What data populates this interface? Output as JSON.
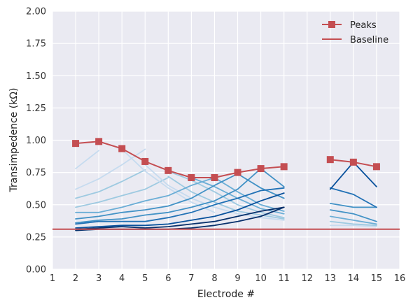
{
  "chart_data": {
    "type": "line",
    "xlabel": "Electrode #",
    "ylabel": "Transimpedence (kΩ)",
    "xlim": [
      1,
      16
    ],
    "ylim": [
      0,
      2
    ],
    "x_ticks": [
      "1",
      "2",
      "3",
      "4",
      "5",
      "6",
      "7",
      "8",
      "9",
      "10",
      "11",
      "12",
      "13",
      "14",
      "15",
      "16"
    ],
    "y_ticks": [
      "0.00",
      "0.25",
      "0.50",
      "0.75",
      "1.00",
      "1.25",
      "1.50",
      "1.75",
      "2.00"
    ],
    "grid": true,
    "legend_position": "top-right",
    "colors": {
      "peaks": "#c44e52",
      "baseline": "#c44e52",
      "background": "#eaeaf2",
      "grid": "#ffffff",
      "blue_palette": [
        "#c6dbef",
        "#9ecae1",
        "#6baed6",
        "#4292c6",
        "#2171b5",
        "#08519c",
        "#08306b"
      ]
    },
    "peaks": {
      "name": "Peaks",
      "x": [
        2,
        3,
        4,
        5,
        6,
        7,
        8,
        9,
        10,
        11,
        13,
        14,
        15
      ],
      "values": [
        0.975,
        0.99,
        0.935,
        0.835,
        0.765,
        0.71,
        0.71,
        0.75,
        0.78,
        0.795,
        0.85,
        0.83,
        0.795
      ]
    },
    "baseline": {
      "name": "Baseline",
      "value": 0.31
    },
    "curves": [
      {
        "x": [
          2,
          3
        ],
        "values": [
          0.78,
          0.92
        ],
        "shade": 0
      },
      {
        "x": [
          2,
          3,
          4,
          5
        ],
        "values": [
          0.62,
          0.7,
          0.81,
          0.93
        ],
        "shade": 0
      },
      {
        "x": [
          2,
          3,
          4,
          5
        ],
        "values": [
          0.55,
          0.6,
          0.68,
          0.77
        ],
        "shade": 1
      },
      {
        "x": [
          2,
          3,
          4,
          5,
          6
        ],
        "values": [
          0.48,
          0.52,
          0.57,
          0.62,
          0.71
        ],
        "shade": 1
      },
      {
        "x": [
          4,
          5,
          6,
          7,
          8
        ],
        "values": [
          0.93,
          0.76,
          0.63,
          0.52,
          0.44
        ],
        "shade": 0
      },
      {
        "x": [
          5,
          6,
          7,
          8,
          9,
          10,
          11
        ],
        "values": [
          0.81,
          0.65,
          0.55,
          0.48,
          0.43,
          0.4,
          0.38
        ],
        "shade": 0
      },
      {
        "x": [
          6,
          7,
          8,
          9,
          10,
          11
        ],
        "values": [
          0.72,
          0.6,
          0.52,
          0.45,
          0.42,
          0.39
        ],
        "shade": 1
      },
      {
        "x": [
          6,
          7,
          8,
          9,
          10,
          11
        ],
        "values": [
          0.76,
          0.69,
          0.6,
          0.5,
          0.44,
          0.4
        ],
        "shade": 1
      },
      {
        "x": [
          7,
          8,
          9,
          10,
          11
        ],
        "values": [
          0.71,
          0.64,
          0.55,
          0.47,
          0.43
        ],
        "shade": 2
      },
      {
        "x": [
          2,
          3,
          4,
          5,
          6,
          7,
          8,
          9,
          10,
          11
        ],
        "values": [
          0.44,
          0.44,
          0.48,
          0.53,
          0.57,
          0.65,
          0.71,
          0.6,
          0.5,
          0.45
        ],
        "shade": 2
      },
      {
        "x": [
          2,
          3,
          4,
          5,
          6,
          7,
          8,
          9,
          10,
          11
        ],
        "values": [
          0.39,
          0.41,
          0.44,
          0.46,
          0.49,
          0.55,
          0.65,
          0.74,
          0.63,
          0.55
        ],
        "shade": 3
      },
      {
        "x": [
          2,
          3,
          4,
          5,
          6,
          7,
          8,
          9,
          10,
          11
        ],
        "values": [
          0.36,
          0.38,
          0.39,
          0.42,
          0.44,
          0.48,
          0.53,
          0.62,
          0.78,
          0.64
        ],
        "shade": 3
      },
      {
        "x": [
          2,
          3,
          4,
          5,
          6,
          7,
          8,
          9,
          10,
          11
        ],
        "values": [
          0.35,
          0.37,
          0.37,
          0.37,
          0.4,
          0.44,
          0.5,
          0.55,
          0.61,
          0.63
        ],
        "shade": 4
      },
      {
        "x": [
          2,
          3,
          4,
          5,
          6,
          7,
          8,
          9,
          10,
          11
        ],
        "values": [
          0.32,
          0.33,
          0.34,
          0.34,
          0.35,
          0.38,
          0.41,
          0.46,
          0.53,
          0.59
        ],
        "shade": 5
      },
      {
        "x": [
          2,
          3,
          4,
          5,
          6,
          7,
          8,
          9,
          10,
          11
        ],
        "values": [
          0.31,
          0.32,
          0.33,
          0.32,
          0.33,
          0.35,
          0.37,
          0.41,
          0.45,
          0.48
        ],
        "shade": 6
      },
      {
        "x": [
          2,
          3,
          4,
          5,
          6,
          7,
          8,
          9,
          10,
          11
        ],
        "values": [
          0.3,
          0.31,
          0.31,
          0.31,
          0.31,
          0.32,
          0.34,
          0.37,
          0.41,
          0.48
        ],
        "shade": 6
      },
      {
        "x": [
          13,
          14,
          15
        ],
        "values": [
          0.34,
          0.34,
          0.33
        ],
        "shade": 0
      },
      {
        "x": [
          13,
          14,
          15
        ],
        "values": [
          0.37,
          0.35,
          0.34
        ],
        "shade": 1
      },
      {
        "x": [
          13,
          14,
          15
        ],
        "values": [
          0.41,
          0.38,
          0.35
        ],
        "shade": 2
      },
      {
        "x": [
          13,
          14,
          15
        ],
        "values": [
          0.46,
          0.43,
          0.37
        ],
        "shade": 3
      },
      {
        "x": [
          13,
          14,
          15
        ],
        "values": [
          0.51,
          0.48,
          0.48
        ],
        "shade": 3
      },
      {
        "x": [
          13,
          14,
          15
        ],
        "values": [
          0.63,
          0.58,
          0.48
        ],
        "shade": 4
      },
      {
        "x": [
          13,
          14,
          15
        ],
        "values": [
          0.62,
          0.83,
          0.64
        ],
        "shade": 5
      }
    ]
  }
}
